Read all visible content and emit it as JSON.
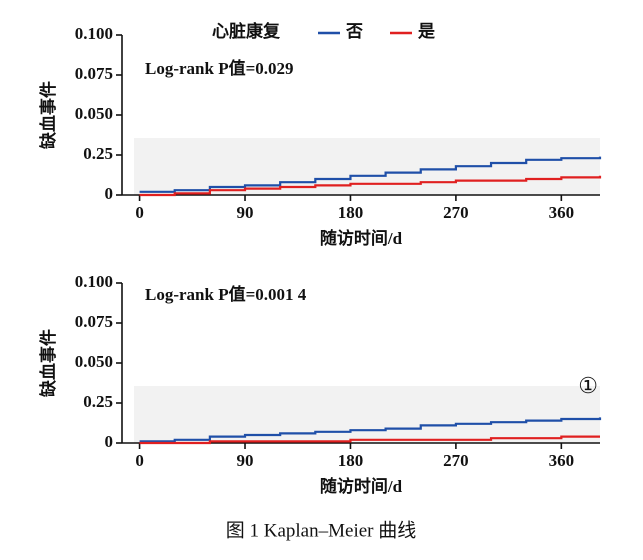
{
  "chart_data": [
    {
      "type": "line",
      "legend_title": "心脏康复",
      "annotation": "Log-rank P值=0.029",
      "ylabel": "缺血事件",
      "xlabel": "随访时间/d",
      "x": [
        0,
        30,
        60,
        90,
        120,
        150,
        180,
        210,
        240,
        270,
        300,
        330,
        360,
        393
      ],
      "series": [
        {
          "name": "否",
          "color": "#1f4fa8",
          "values": [
            0.02,
            0.03,
            0.05,
            0.06,
            0.08,
            0.1,
            0.12,
            0.14,
            0.16,
            0.18,
            0.2,
            0.22,
            0.23,
            0.24
          ]
        },
        {
          "name": "是",
          "color": "#e02020",
          "values": [
            0,
            0.01,
            0.03,
            0.04,
            0.05,
            0.06,
            0.07,
            0.07,
            0.08,
            0.09,
            0.09,
            0.1,
            0.11,
            0.12
          ]
        }
      ],
      "xlim": [
        -15,
        393
      ],
      "xticks": [
        0,
        90,
        180,
        270,
        360
      ],
      "ylim": [
        0,
        0.25
      ],
      "yticks": [
        0,
        0.25
      ],
      "ylim_upper": [
        0.05,
        0.1
      ],
      "yticks_upper": [
        {
          "value": 0.05,
          "label": "0.050"
        },
        {
          "value": 0.075,
          "label": "0.075"
        },
        {
          "value": 0.1,
          "label": "0.100"
        }
      ]
    },
    {
      "type": "line",
      "annotation": "Log-rank P值=0.001 4",
      "corner_label": "①",
      "ylabel": "缺血事件",
      "xlabel": "随访时间/d",
      "x": [
        0,
        30,
        60,
        90,
        120,
        150,
        180,
        210,
        240,
        270,
        300,
        330,
        360,
        393
      ],
      "series": [
        {
          "name": "否",
          "color": "#1f4fa8",
          "values": [
            0.01,
            0.02,
            0.04,
            0.05,
            0.06,
            0.07,
            0.08,
            0.09,
            0.11,
            0.12,
            0.13,
            0.14,
            0.15,
            0.16
          ]
        },
        {
          "name": "是",
          "color": "#e02020",
          "values": [
            0,
            0,
            0.01,
            0.01,
            0.01,
            0.01,
            0.02,
            0.02,
            0.02,
            0.02,
            0.03,
            0.03,
            0.04,
            0.04
          ]
        }
      ],
      "xlim": [
        -15,
        393
      ],
      "xticks": [
        0,
        90,
        180,
        270,
        360
      ],
      "ylim": [
        0,
        0.25
      ],
      "yticks": [
        0,
        0.25
      ],
      "ylim_upper": [
        0.05,
        0.1
      ],
      "yticks_upper": [
        {
          "value": 0.05,
          "label": "0.050"
        },
        {
          "value": 0.075,
          "label": "0.075"
        },
        {
          "value": 0.1,
          "label": "0.100"
        }
      ]
    }
  ],
  "caption": "图 1   Kaplan–Meier 曲线"
}
